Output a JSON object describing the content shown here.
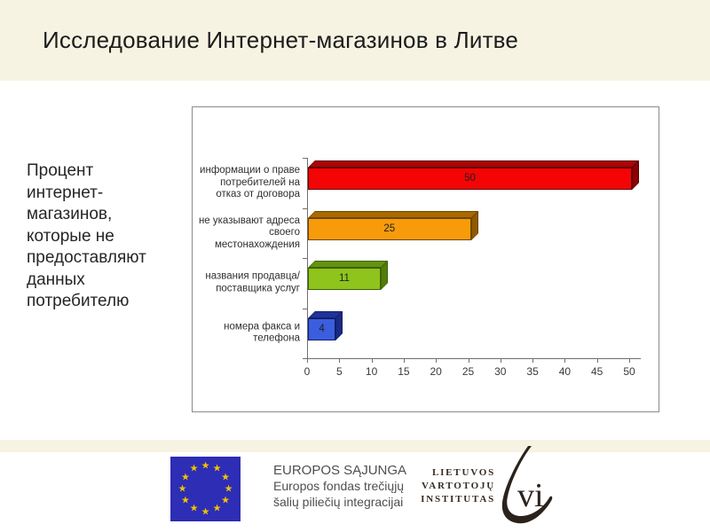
{
  "title": "Исследование Интернет-магазинов в Литве",
  "left_note": "Процент\nинтернет-\nмагазинов,\nкоторые не\nпредоставляют\nданных\nпотребителю",
  "chart_data": {
    "type": "bar",
    "orientation": "horizontal",
    "title": "",
    "categories": [
      "информации о праве потребителей на отказ от договора",
      "не указывают адреса своего местонахождения",
      "названия продавца/поставщика услуг",
      "номера факса и телефона"
    ],
    "values": [
      50,
      25,
      11,
      4
    ],
    "data_labels": [
      "50",
      "25",
      "11",
      "4"
    ],
    "xlim": [
      0,
      50
    ],
    "x_ticks": [
      0,
      5,
      10,
      15,
      20,
      25,
      30,
      35,
      40,
      45,
      50
    ],
    "grid": false,
    "legend": false,
    "style_3d": true,
    "bar_colors": [
      {
        "front": "#f40404",
        "top": "#ab0404",
        "side": "#8c0202",
        "border": "#5f0000"
      },
      {
        "front": "#f89b0b",
        "top": "#aa6a00",
        "side": "#8f5900",
        "border": "#6e4700"
      },
      {
        "front": "#8ec41c",
        "top": "#639310",
        "side": "#527d08",
        "border": "#3f6205"
      },
      {
        "front": "#3b5ede",
        "top": "#20339b",
        "side": "#1a2a85",
        "border": "#131f66"
      }
    ]
  },
  "footer": {
    "eu": {
      "flag_icon": "eu-flag",
      "flag_blue": "#2d2db5",
      "star_color": "#f3c300",
      "lines": [
        "EUROPOS SĄJUNGA",
        "Europos fondas trečiųjų",
        "šalių piliečių integracijai"
      ]
    },
    "lvi": {
      "lines": [
        "LIETUVOS",
        "VARTOTOJŲ",
        "INSTITUTAS"
      ],
      "mark": "vi"
    }
  }
}
